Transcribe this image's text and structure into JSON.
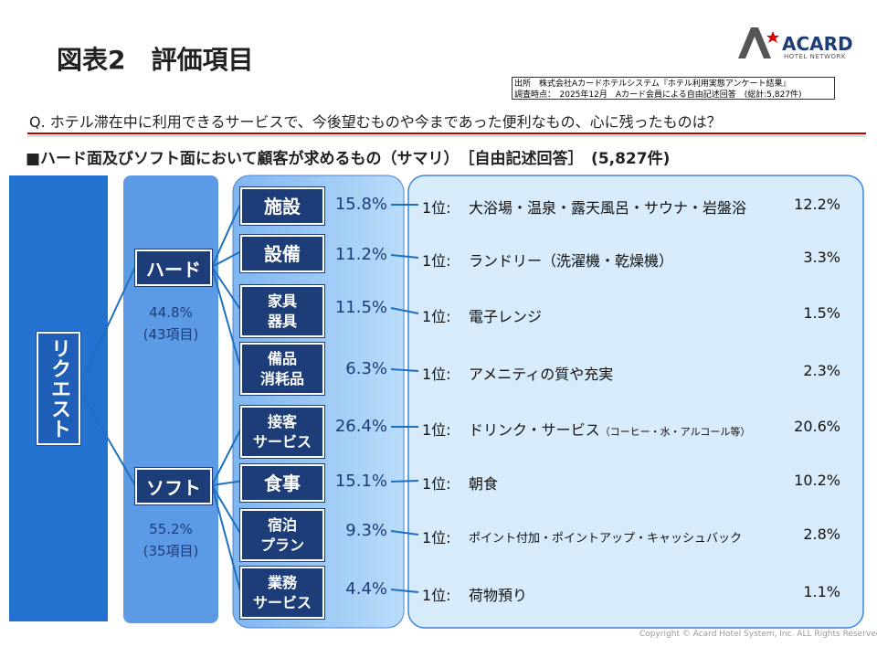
{
  "header": {
    "title": "図表2　評価項目",
    "logo": {
      "mark": "A",
      "name": "ACARD",
      "tagline": "HOTEL NETWORK"
    },
    "source": [
      "出所　株式会社Aカードホテルシステム『ホテル利用実態アンケート結果』",
      "調査時点：　2025年12月　Aカード会員による自由記述回答　(総計:5,827件)"
    ],
    "question": "Q. ホテル滞在中に利用できるサービスで、今後望むものや今まであった便利なもの、心に残ったものは？",
    "subtitle": "■ハード面及びソフト面において顧客が求めるもの（サマリ）　［自由記述回答］　(5,827件)"
  },
  "root": "リクエスト",
  "groups": [
    {
      "label": "ハード",
      "share": "44.8%",
      "count": "(43項目)"
    },
    {
      "label": "ソフト",
      "share": "55.2%",
      "count": "(35項目)"
    }
  ],
  "items": [
    {
      "label": [
        "施設"
      ],
      "share": "15.8%",
      "rank": "1位:",
      "top": "大浴場・温泉・露天風呂・サウナ・岩盤浴",
      "top_share": "12.2%"
    },
    {
      "label": [
        "設備"
      ],
      "share": "11.2%",
      "rank": "1位:",
      "top": "ランドリー（洗濯機・乾燥機）",
      "top_share": "3.3%"
    },
    {
      "label": [
        "家具",
        "器具"
      ],
      "share": "11.5%",
      "rank": "1位:",
      "top": "電子レンジ",
      "top_share": "1.5%"
    },
    {
      "label": [
        "備品",
        "消耗品"
      ],
      "share": "6.3%",
      "rank": "1位:",
      "top": "アメニティの質や充実",
      "top_share": "2.3%"
    },
    {
      "label": [
        "接客",
        "サービス"
      ],
      "share": "26.4%",
      "rank": "1位:",
      "top": "ドリンク・サービス",
      "note": "（コーヒー・水・アルコール等）",
      "top_share": "20.6%"
    },
    {
      "label": [
        "食事"
      ],
      "share": "15.1%",
      "rank": "1位:",
      "top": "朝食",
      "top_share": "10.2%"
    },
    {
      "label": [
        "宿泊",
        "プラン"
      ],
      "share": "9.3%",
      "rank": "1位:",
      "top": "ポイント付加・ポイントアップ・キャッシュバック",
      "top_share": "2.8%"
    },
    {
      "label": [
        "業務",
        "サービス"
      ],
      "share": "4.4%",
      "rank": "1位:",
      "top": "荷物預り",
      "top_share": "1.1%"
    }
  ],
  "footer": "Copyright © Acard Hotel System, Inc.  ALL Rights Reserved."
}
